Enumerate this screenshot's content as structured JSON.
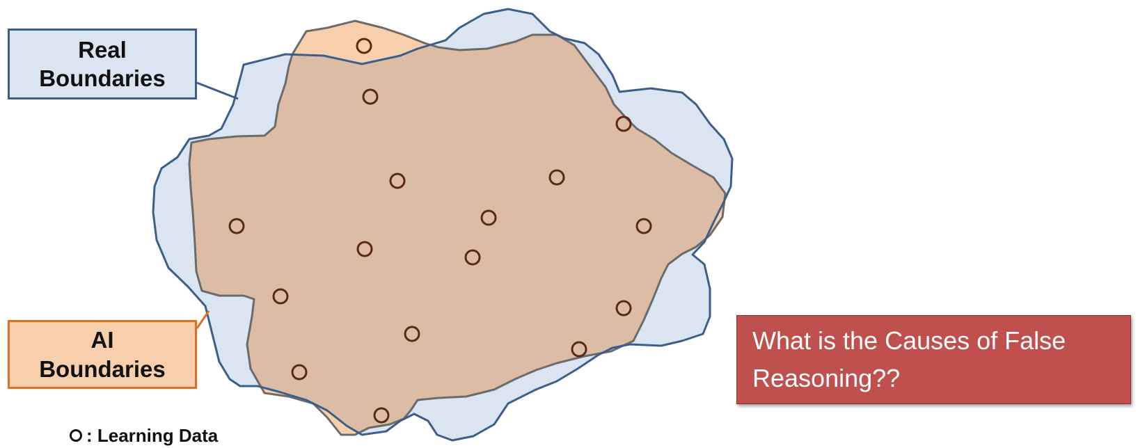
{
  "labels": {
    "real_boundaries": "Real\nBoundaries",
    "ai_boundaries": "AI\nBoundaries"
  },
  "legend": {
    "marker_icon": "hollow-circle-icon",
    "text": ": Learning Data"
  },
  "question": {
    "text": "What is the Causes of False Reasoning??"
  },
  "colors": {
    "real_fill": "#dbe5f1",
    "real_stroke": "#3b5f8a",
    "ai_fill": "#f7cfad",
    "ai_stroke": "#6b6b6b",
    "overlap_fill": "#ddbca5",
    "ai_label_stroke": "#e07020",
    "learning_point": "#5a2a10",
    "question_bg": "#c0504d",
    "question_text": "#ffffff"
  },
  "learning_points_count": 16
}
